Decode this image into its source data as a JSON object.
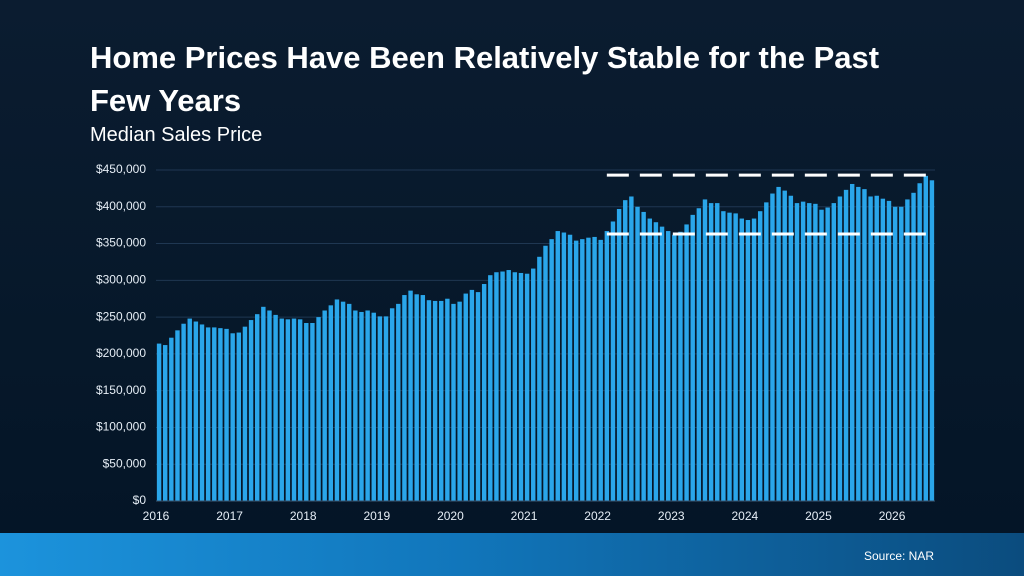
{
  "chart_data": {
    "type": "bar",
    "title": "Home Prices Have Been Relatively Stable for the Past Few Years",
    "subtitle": "Median Sales Price",
    "source": "Source: NAR",
    "categories": [
      "2016",
      null,
      null,
      null,
      null,
      null,
      null,
      null,
      null,
      null,
      null,
      null,
      "2017",
      null,
      null,
      null,
      null,
      null,
      null,
      null,
      null,
      null,
      null,
      null,
      "2018",
      null,
      null,
      null,
      null,
      null,
      null,
      null,
      null,
      null,
      null,
      null,
      "2019",
      null,
      null,
      null,
      null,
      null,
      null,
      null,
      null,
      null,
      null,
      null,
      "2020",
      null,
      null,
      null,
      null,
      null,
      null,
      null,
      null,
      null,
      null,
      null,
      "2021",
      null,
      null,
      null,
      null,
      null,
      null,
      null,
      null,
      null,
      null,
      null,
      "2022",
      null,
      null,
      null,
      null,
      null,
      null,
      null,
      null,
      null,
      null,
      null,
      "2023",
      null,
      null,
      null,
      null,
      null,
      null,
      null,
      null,
      null,
      null,
      null,
      "2024",
      null,
      null,
      null,
      null,
      null,
      null,
      null,
      null,
      null,
      null,
      null,
      "2025",
      null,
      null,
      null,
      null,
      null,
      null,
      null,
      null,
      null,
      null,
      null,
      "2026",
      null,
      null,
      null,
      null,
      null,
      null
    ],
    "values": [
      214000,
      212000,
      222000,
      232000,
      241000,
      248000,
      244000,
      240000,
      236000,
      236000,
      235000,
      234000,
      228000,
      229000,
      237000,
      246000,
      254000,
      264000,
      259000,
      253000,
      248000,
      247000,
      248000,
      247000,
      242000,
      242000,
      250000,
      259000,
      266000,
      274000,
      271000,
      268000,
      259000,
      257000,
      259000,
      256000,
      251000,
      251000,
      262000,
      268000,
      280000,
      286000,
      281000,
      280000,
      273000,
      272000,
      272000,
      275000,
      268000,
      271000,
      282000,
      287000,
      284000,
      295000,
      307000,
      311000,
      312000,
      314000,
      311000,
      310000,
      309000,
      316000,
      332000,
      347000,
      356000,
      367000,
      365000,
      362000,
      354000,
      356000,
      358000,
      359000,
      355000,
      367000,
      380000,
      397000,
      409000,
      414000,
      400000,
      393000,
      384000,
      379000,
      373000,
      367000,
      362000,
      366000,
      376000,
      389000,
      398000,
      410000,
      405000,
      405000,
      394000,
      392000,
      391000,
      384000,
      382000,
      384000,
      394000,
      406000,
      418000,
      427000,
      422000,
      415000,
      405000,
      407000,
      405000,
      404000,
      396000,
      399000,
      405000,
      414000,
      423000,
      431000,
      427000,
      424000,
      414000,
      415000,
      411000,
      408000,
      400000,
      400000,
      410000,
      419000,
      432000,
      442000,
      436000
    ],
    "color": "#2aa6ea",
    "reference_lines": [
      443000,
      363000
    ],
    "ylim": [
      0,
      450000
    ],
    "yticks": [
      {
        "value": 0,
        "label": "$0"
      },
      {
        "value": 50000,
        "label": "$50,000"
      },
      {
        "value": 100000,
        "label": "$100,000"
      },
      {
        "value": 150000,
        "label": "$150,000"
      },
      {
        "value": 200000,
        "label": "$200,000"
      },
      {
        "value": 250000,
        "label": "$250,000"
      },
      {
        "value": 300000,
        "label": "$300,000"
      },
      {
        "value": 350000,
        "label": "$350,000"
      },
      {
        "value": 400000,
        "label": "$400,000"
      },
      {
        "value": 450000,
        "label": "$450,000"
      }
    ],
    "grid": true
  }
}
